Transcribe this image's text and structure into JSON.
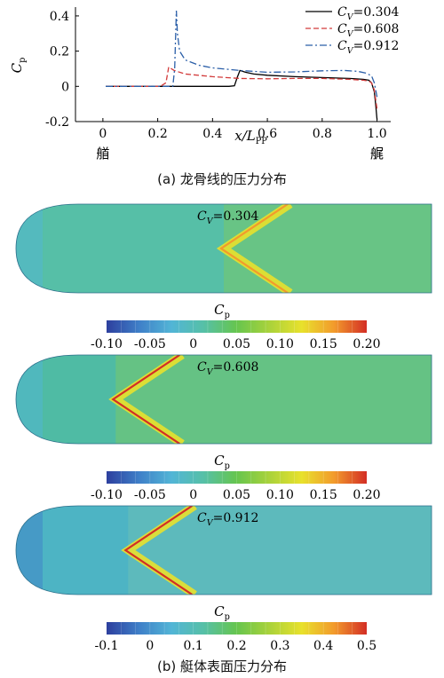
{
  "chart_data": [
    {
      "type": "line",
      "xlabel": "x/L",
      "xlabel_sub": "PP",
      "ylabel": "C",
      "ylabel_sub": "p",
      "xlim": [
        -0.1,
        1.05
      ],
      "ylim": [
        -0.2,
        0.45
      ],
      "xticks": [
        "0",
        "0.2",
        "0.4",
        "0.6",
        "0.8",
        "1.0"
      ],
      "yticks": [
        "-0.2",
        "0",
        "0.2",
        "0.4"
      ],
      "x_end_labels": {
        "bow": "艏",
        "stern": "艉"
      },
      "legend_position": "top-right",
      "series": [
        {
          "name": "C_V=0.304",
          "color": "#000000",
          "dash": "solid",
          "points": [
            [
              0.01,
              0
            ],
            [
              0.46,
              0
            ],
            [
              0.48,
              0.003
            ],
            [
              0.49,
              0.05
            ],
            [
              0.5,
              0.09
            ],
            [
              0.52,
              0.08
            ],
            [
              0.55,
              0.07
            ],
            [
              0.6,
              0.063
            ],
            [
              0.7,
              0.055
            ],
            [
              0.8,
              0.05
            ],
            [
              0.9,
              0.045
            ],
            [
              0.95,
              0.04
            ],
            [
              0.97,
              0.035
            ],
            [
              0.98,
              0.02
            ],
            [
              0.99,
              -0.03
            ],
            [
              0.995,
              -0.1
            ],
            [
              1.0,
              -0.19
            ]
          ]
        },
        {
          "name": "C_V=0.608",
          "color": "#d23a3a",
          "dash": "6,3",
          "points": [
            [
              0.01,
              0
            ],
            [
              0.21,
              0
            ],
            [
              0.23,
              0.02
            ],
            [
              0.24,
              0.11
            ],
            [
              0.26,
              0.09
            ],
            [
              0.3,
              0.07
            ],
            [
              0.4,
              0.055
            ],
            [
              0.5,
              0.045
            ],
            [
              0.6,
              0.043
            ],
            [
              0.7,
              0.045
            ],
            [
              0.8,
              0.045
            ],
            [
              0.9,
              0.04
            ],
            [
              0.95,
              0.035
            ],
            [
              0.97,
              0.03
            ],
            [
              0.98,
              0.02
            ],
            [
              0.99,
              -0.02
            ],
            [
              1.0,
              -0.13
            ]
          ]
        },
        {
          "name": "C_V=0.912",
          "color": "#2b5fa8",
          "dash": "8,3,2,3",
          "points": [
            [
              0.01,
              0
            ],
            [
              0.255,
              0
            ],
            [
              0.262,
              0.1
            ],
            [
              0.268,
              0.43
            ],
            [
              0.272,
              0.3
            ],
            [
              0.28,
              0.2
            ],
            [
              0.3,
              0.15
            ],
            [
              0.35,
              0.12
            ],
            [
              0.4,
              0.105
            ],
            [
              0.5,
              0.09
            ],
            [
              0.6,
              0.08
            ],
            [
              0.7,
              0.082
            ],
            [
              0.8,
              0.088
            ],
            [
              0.88,
              0.09
            ],
            [
              0.93,
              0.085
            ],
            [
              0.96,
              0.075
            ],
            [
              0.98,
              0.06
            ],
            [
              0.99,
              0.02
            ],
            [
              1.0,
              -0.06
            ]
          ]
        }
      ]
    },
    {
      "type": "heatmap",
      "label": "C_V=0.304",
      "colorbar_label": "C",
      "colorbar_label_sub": "p",
      "colorbar_ticks": [
        "-0.10",
        "-0.05",
        "0",
        "0.05",
        "0.10",
        "0.15",
        "0.20"
      ],
      "colorbar_range": [
        -0.1,
        0.2
      ],
      "shock_x": 0.5,
      "base_color": "#56bfa7"
    },
    {
      "type": "heatmap",
      "label": "C_V=0.608",
      "colorbar_label": "C",
      "colorbar_label_sub": "p",
      "colorbar_ticks": [
        "-0.10",
        "-0.05",
        "0",
        "0.05",
        "0.10",
        "0.15",
        "0.20"
      ],
      "colorbar_range": [
        -0.1,
        0.2
      ],
      "shock_x": 0.24,
      "base_color": "#4fbba4"
    },
    {
      "type": "heatmap",
      "label": "C_V=0.912",
      "colorbar_label": "C",
      "colorbar_label_sub": "p",
      "colorbar_ticks": [
        "-0.1",
        "0",
        "0.1",
        "0.2",
        "0.3",
        "0.4",
        "0.5"
      ],
      "colorbar_range": [
        -0.1,
        0.5
      ],
      "shock_x": 0.27,
      "base_color": "#4db4c4"
    }
  ],
  "captions": {
    "a": "(a) 龙骨线的压力分布",
    "b": "(b) 艇体表面压力分布"
  },
  "colormap": [
    "#2d3f9e",
    "#3f7fc8",
    "#52b5d6",
    "#56c0a6",
    "#66c54e",
    "#a9d23b",
    "#e8e12c",
    "#f29a2c",
    "#d32e25"
  ]
}
